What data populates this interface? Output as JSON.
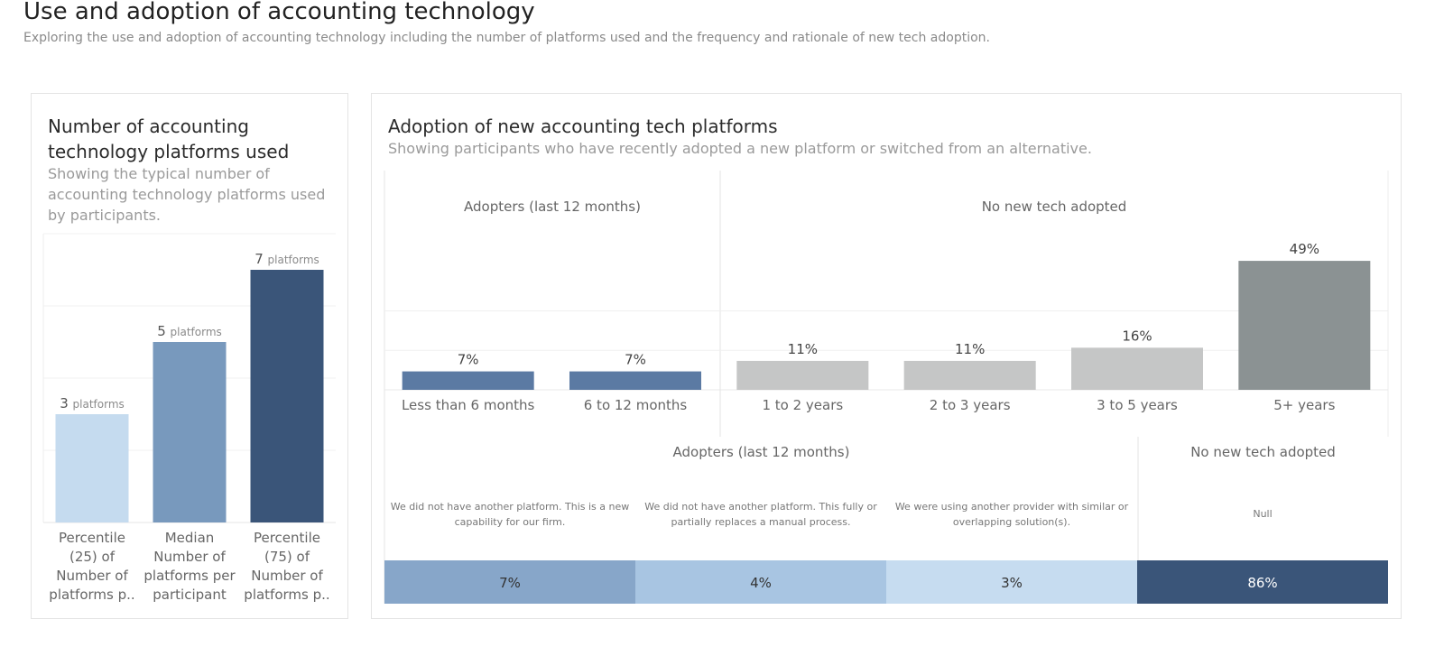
{
  "page": {
    "title": "Use and adoption of accounting technology",
    "subtitle": "Exploring the use and adoption of accounting technology including the number of platforms used and the frequency and rationale of new tech adoption."
  },
  "left_panel": {
    "title_line1": "Number of accounting",
    "title_line2": "technology platforms used",
    "subtitle_line1": "Showing the typical number of",
    "subtitle_line2": "accounting technology platforms used",
    "subtitle_line3": "by participants."
  },
  "right_panel": {
    "title": "Adoption of new accounting tech platforms",
    "subtitle": "Showing participants who have recently adopted a new platform or switched from an alternative."
  },
  "chart_data": [
    {
      "type": "bar",
      "title": "Number of accounting technology platforms used",
      "categories": [
        [
          "Percentile",
          "(25) of",
          "Number of",
          "platforms p.."
        ],
        [
          "Median",
          "Number of",
          "platforms per",
          "participant"
        ],
        [
          "Percentile",
          "(75) of",
          "Number of",
          "platforms p.."
        ]
      ],
      "values": [
        3,
        5,
        7
      ],
      "unit_label": "platforms",
      "colors": [
        "#c5dbef",
        "#7899bd",
        "#3a5579"
      ],
      "ylim": [
        0,
        8
      ],
      "grid": true
    },
    {
      "type": "bar",
      "title": "Adoption of new accounting tech platforms",
      "groups": [
        {
          "label": "Adopters (last 12 months)",
          "categories": [
            "Less than 6 months",
            "6 to 12 months"
          ],
          "values": [
            7,
            7
          ],
          "labels": [
            "7%",
            "7%"
          ]
        },
        {
          "label": "No new tech adopted",
          "categories": [
            "1 to 2 years",
            "2 to 3 years",
            "3 to 5 years",
            "5+ years"
          ],
          "values": [
            11,
            11,
            16,
            49
          ],
          "labels": [
            "11%",
            "11%",
            "16%",
            "49%"
          ]
        }
      ],
      "colors": [
        "#5b7aa3",
        "#5b7aa3",
        "#c5c6c6",
        "#c5c6c6",
        "#c5c6c6",
        "#8b9293"
      ],
      "ylim": [
        0,
        60
      ],
      "grid": true
    },
    {
      "type": "bar",
      "stacked": true,
      "groups": [
        {
          "label": "Adopters (last 12 months)",
          "categories": [
            "We did not have another platform. This is a new capability for our firm.",
            "We did not have another platform. This fully or partially replaces a manual process.",
            "We were using another provider with similar or overlapping solution(s)."
          ]
        },
        {
          "label": "No new tech adopted",
          "categories": [
            "Null"
          ]
        }
      ],
      "values": [
        7,
        4,
        3,
        86
      ],
      "labels": [
        "7%",
        "4%",
        "3%",
        "86%"
      ],
      "colors": [
        "#87a6c9",
        "#a8c5e2",
        "#c6dcf0",
        "#3a5579"
      ]
    }
  ]
}
